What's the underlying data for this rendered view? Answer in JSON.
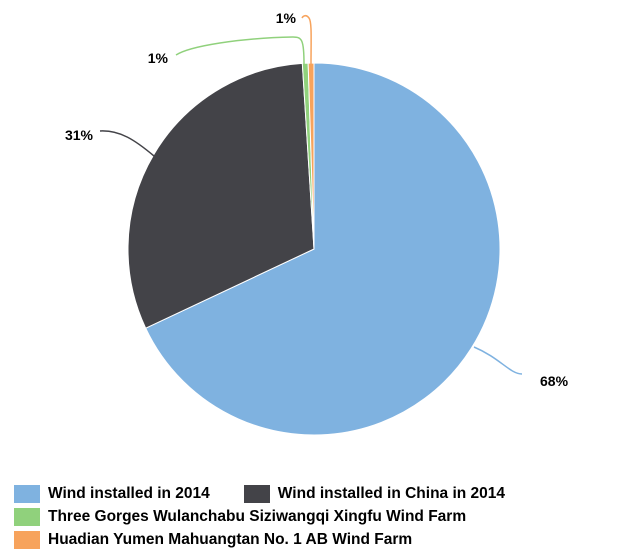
{
  "chart_data": {
    "type": "pie",
    "title": "",
    "slices": [
      {
        "name": "Wind installed in 2014",
        "value": 68,
        "label": "68%",
        "color": "#7fb2e0"
      },
      {
        "name": "Wind installed in China in 2014",
        "value": 31,
        "label": "31%",
        "color": "#434348"
      },
      {
        "name": "Three Gorges Wulanchabu Siziwangqi Xingfu Wind Farm",
        "value": 0.5,
        "label": "1%",
        "color": "#90d17c"
      },
      {
        "name": "Huadian Yumen Mahuangtan No. 1 AB Wind Farm",
        "value": 0.5,
        "label": "1%",
        "color": "#f7a35c"
      }
    ],
    "legend_position": "bottom"
  }
}
